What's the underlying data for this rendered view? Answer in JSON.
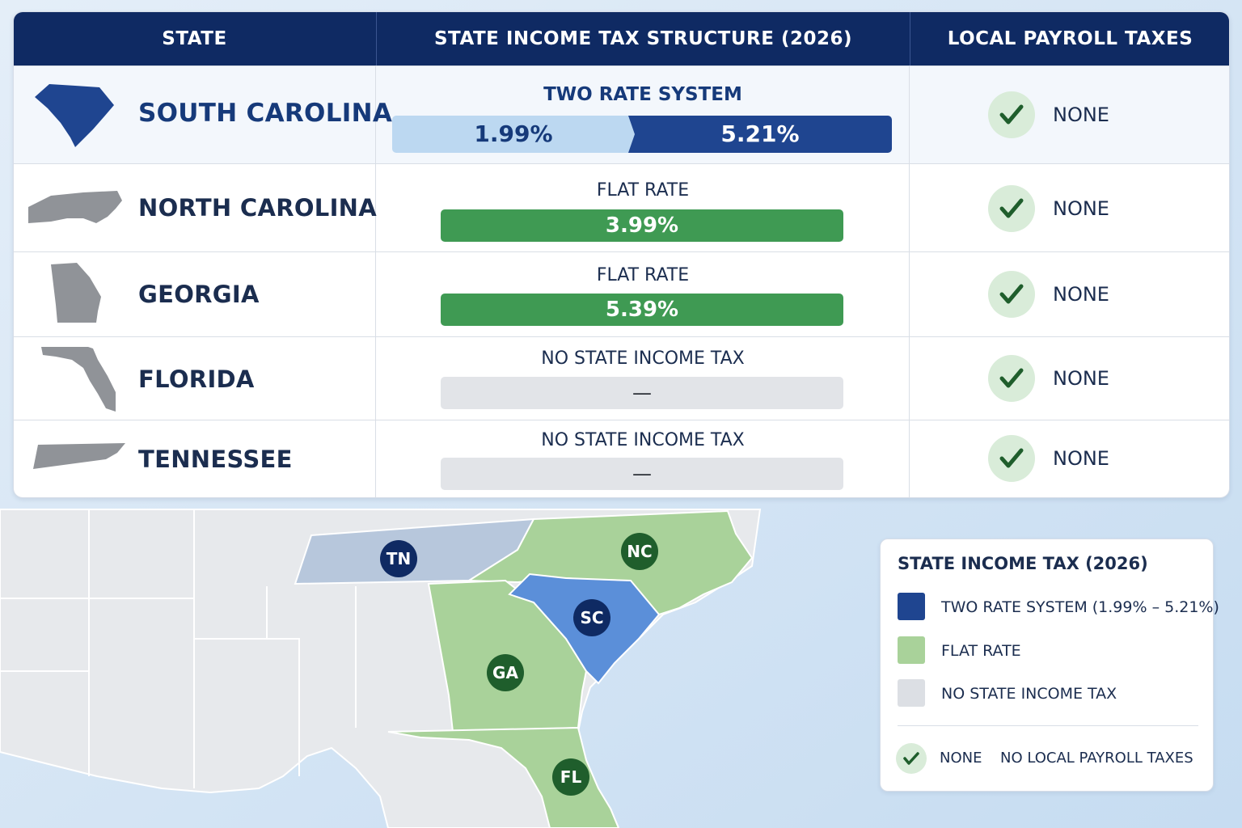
{
  "table": {
    "headers": {
      "state": "STATE",
      "structure": "STATE INCOME TAX STRUCTURE (2026)",
      "local": "LOCAL PAYROLL TAXES"
    },
    "rows": [
      {
        "state": "SOUTH CAROLINA",
        "structure_label": "TWO RATE SYSTEM",
        "rate_low": "1.99%",
        "rate_high": "5.21%",
        "local": "NONE",
        "shape_icon": "south-carolina-shape-icon"
      },
      {
        "state": "NORTH CAROLINA",
        "structure_label": "FLAT RATE",
        "rate": "3.99%",
        "local": "NONE",
        "shape_icon": "north-carolina-shape-icon"
      },
      {
        "state": "GEORGIA",
        "structure_label": "FLAT RATE",
        "rate": "5.39%",
        "local": "NONE",
        "shape_icon": "georgia-shape-icon"
      },
      {
        "state": "FLORIDA",
        "structure_label": "NO STATE INCOME TAX",
        "rate": "—",
        "local": "NONE",
        "shape_icon": "florida-shape-icon"
      },
      {
        "state": "TENNESSEE",
        "structure_label": "NO STATE INCOME TAX",
        "rate": "—",
        "local": "NONE",
        "shape_icon": "tennessee-shape-icon"
      }
    ]
  },
  "map": {
    "labels": {
      "tn": "TN",
      "nc": "NC",
      "sc": "SC",
      "ga": "GA",
      "fl": "FL"
    }
  },
  "legend": {
    "title": "STATE INCOME TAX (2026)",
    "items": [
      {
        "label": "TWO RATE SYSTEM (1.99% – 5.21%)",
        "color": "#1f4590"
      },
      {
        "label": "FLAT RATE",
        "color": "#a9d29a"
      },
      {
        "label": "NO STATE INCOME TAX",
        "color": "#dcdfe4"
      }
    ],
    "none_label": "NONE",
    "no_local_label": "NO LOCAL PAYROLL TAXES"
  },
  "colors": {
    "header_bg": "#0f2a63",
    "two_rate_dark": "#1f4590",
    "two_rate_light": "#bcd8f1",
    "flat_bar": "#3f9a53",
    "flat_map": "#a9d29a",
    "none_gray": "#dcdfe4",
    "check_green": "#1f5e2c"
  }
}
